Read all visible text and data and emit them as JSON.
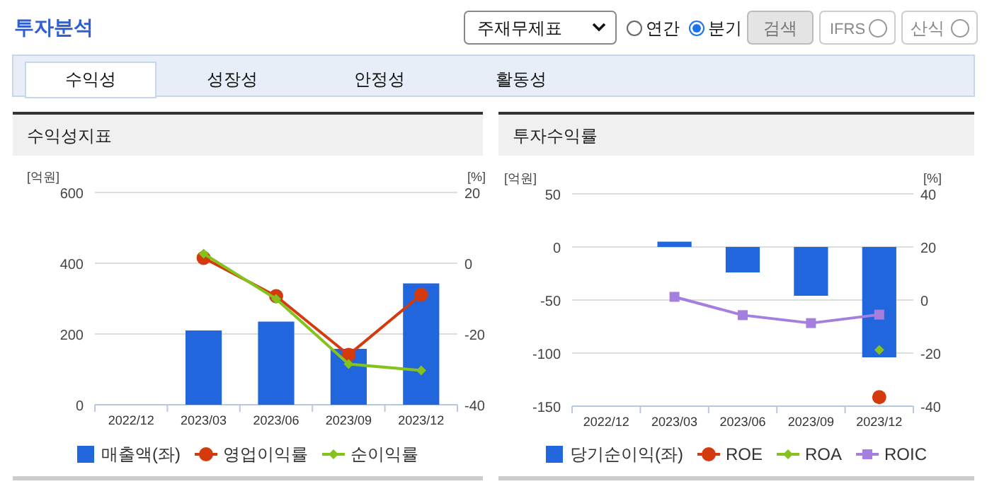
{
  "chart_data": [
    {
      "type": "other",
      "annotations": [
        "투자분석",
        "주재무제표",
        "연간",
        "분기",
        "검색",
        "IFRS",
        "산식",
        "수익성",
        "성장성",
        "안정성",
        "활동성"
      ]
    },
    {
      "type": "bar",
      "title": "수익성지표",
      "ylabel": "[억원]",
      "y2label": "[%]",
      "categories": [
        "2022/12",
        "2023/03",
        "2023/06",
        "2023/09",
        "2023/12"
      ],
      "ylim": [
        0,
        600
      ],
      "yticks": [
        0,
        200,
        400,
        600
      ],
      "y2lim": [
        -40,
        20
      ],
      "y2ticks": [
        -40,
        -20,
        0,
        20
      ],
      "grid": "y",
      "legend": "bottom",
      "line_style": "solid",
      "series": [
        {
          "name": "매출액(좌)",
          "type": "bar",
          "color": "#2166dc",
          "values": [
            null,
            210,
            235,
            158,
            343
          ]
        },
        {
          "name": "영업이익률",
          "type": "line",
          "axis": "y2",
          "marker": "circle",
          "color": "#d33b0f",
          "values": [
            null,
            1.5,
            -9.3,
            -25.9,
            -8.9
          ]
        },
        {
          "name": "순이익률",
          "type": "line",
          "axis": "y2",
          "marker": "diamond",
          "color": "#86c21c",
          "values": [
            null,
            2.7,
            -10.1,
            -28.5,
            -30.3
          ]
        }
      ]
    },
    {
      "type": "bar",
      "title": "투자수익률",
      "ylabel": "[억원]",
      "y2label": "[%]",
      "categories": [
        "2022/12",
        "2023/03",
        "2023/06",
        "2023/09",
        "2023/12"
      ],
      "ylim": [
        -150,
        50
      ],
      "yticks": [
        -150,
        -100,
        -50,
        0,
        50
      ],
      "y2lim": [
        -40,
        40
      ],
      "y2ticks": [
        -40,
        -20,
        0,
        20,
        40
      ],
      "grid": "y",
      "legend": "bottom",
      "line_style": "solid",
      "series": [
        {
          "name": "당기순이익(좌)",
          "type": "bar",
          "color": "#2166dc",
          "values": [
            null,
            5,
            -24,
            -46,
            -104
          ]
        },
        {
          "name": "ROE",
          "type": "line",
          "axis": "y2",
          "marker": "circle",
          "color": "#d33b0f",
          "values": [
            null,
            null,
            null,
            null,
            -36.6
          ]
        },
        {
          "name": "ROA",
          "type": "line",
          "axis": "y2",
          "marker": "diamond",
          "color": "#86c21c",
          "values": [
            null,
            null,
            null,
            null,
            -18.8
          ]
        },
        {
          "name": "ROIC",
          "type": "line",
          "axis": "y2",
          "marker": "square",
          "color": "#a47fe0",
          "values": [
            null,
            1.2,
            -5.7,
            -8.7,
            -5.5
          ]
        }
      ]
    }
  ]
}
